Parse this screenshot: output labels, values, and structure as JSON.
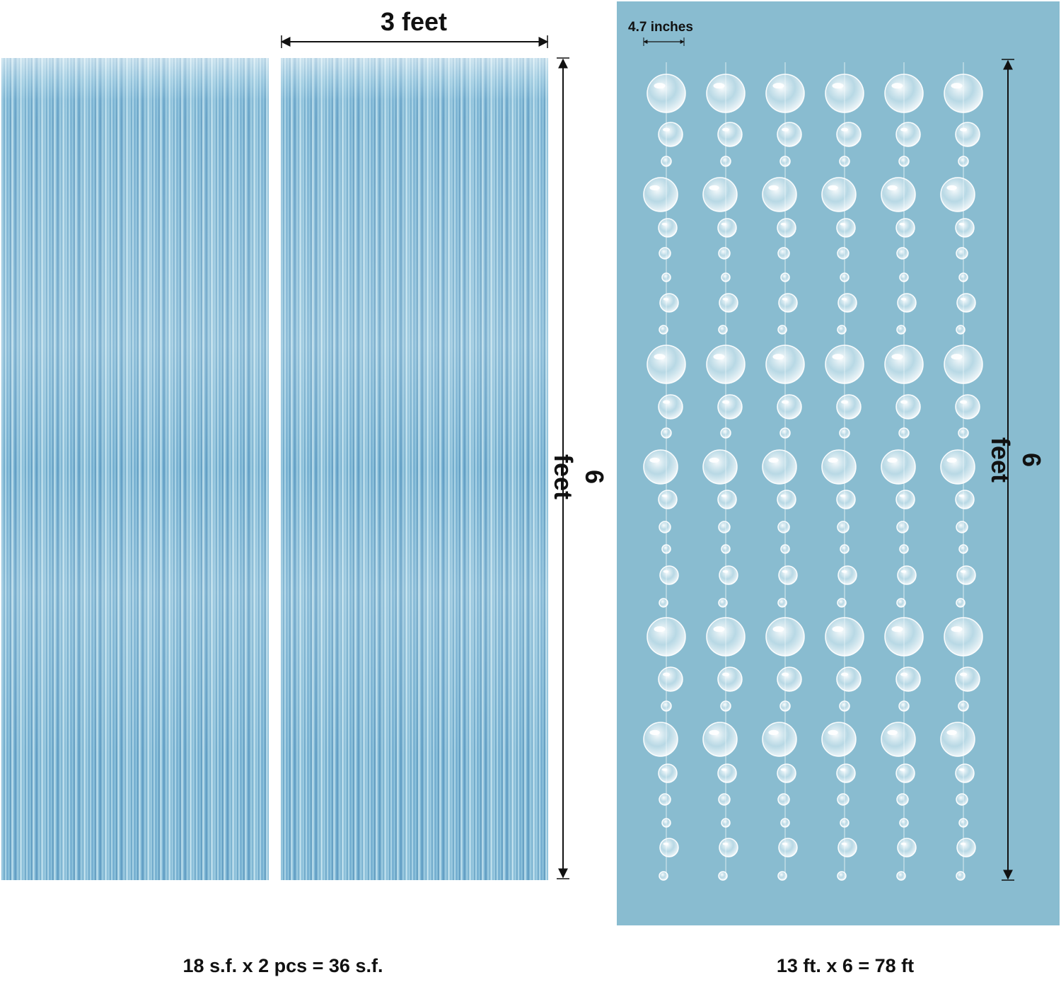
{
  "dimensions": {
    "curtain_width": "3 feet",
    "curtain_height": "6 feet",
    "bubble_spacing": "4.7 inches",
    "bubble_height": "6 feet"
  },
  "captions": {
    "curtain_total": "18 s.f. x 2 pcs = 36 s.f.",
    "bubble_total": "13 ft. x 6 = 78 ft"
  },
  "colors": {
    "bubble_panel_bg": "#89bcd0",
    "curtain_blue": "#7fb6d4",
    "arrow": "#111111"
  },
  "bubble_strands_count": 6
}
